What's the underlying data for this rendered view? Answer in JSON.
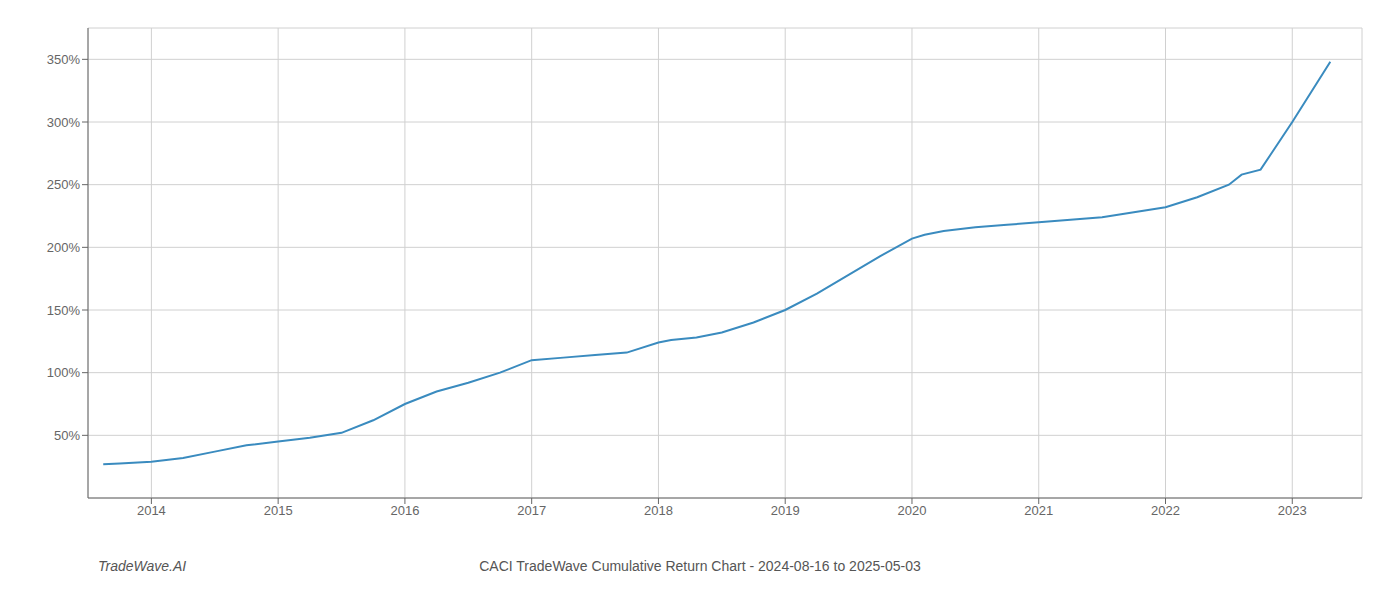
{
  "chart_data": {
    "type": "line",
    "title": "CACI TradeWave Cumulative Return Chart - 2024-08-16 to 2025-05-03",
    "annotations": [
      "TradeWave.AI"
    ],
    "x": [
      2013.62,
      2013.75,
      2014.0,
      2014.25,
      2014.5,
      2014.75,
      2015.0,
      2015.25,
      2015.5,
      2015.75,
      2016.0,
      2016.25,
      2016.5,
      2016.75,
      2017.0,
      2017.25,
      2017.5,
      2017.75,
      2018.0,
      2018.1,
      2018.3,
      2018.5,
      2018.75,
      2019.0,
      2019.25,
      2019.5,
      2019.75,
      2020.0,
      2020.1,
      2020.25,
      2020.5,
      2020.75,
      2021.0,
      2021.25,
      2021.5,
      2021.75,
      2022.0,
      2022.25,
      2022.5,
      2022.6,
      2022.75,
      2023.0,
      2023.3
    ],
    "values": [
      27,
      27.5,
      29,
      32,
      37,
      42,
      45,
      48,
      52,
      62,
      75,
      85,
      92,
      100,
      110,
      112,
      114,
      116,
      124,
      126,
      128,
      132,
      140,
      150,
      163,
      178,
      193,
      207,
      210,
      213,
      216,
      218,
      220,
      222,
      224,
      228,
      232,
      240,
      250,
      258,
      262,
      300,
      348
    ],
    "color": "#3a8bbf",
    "xlim": [
      2013.5,
      2023.55
    ],
    "xticks": [
      2014,
      2015,
      2016,
      2017,
      2018,
      2019,
      2020,
      2021,
      2022,
      2023
    ],
    "ylim": [
      0,
      375
    ],
    "yticks": [
      {
        "value": 50,
        "label": "50%"
      },
      {
        "value": 100,
        "label": "100%"
      },
      {
        "value": 150,
        "label": "150%"
      },
      {
        "value": 200,
        "label": "200%"
      },
      {
        "value": 250,
        "label": "250%"
      },
      {
        "value": 300,
        "label": "300%"
      },
      {
        "value": 350,
        "label": "350%"
      }
    ],
    "grid": true
  }
}
